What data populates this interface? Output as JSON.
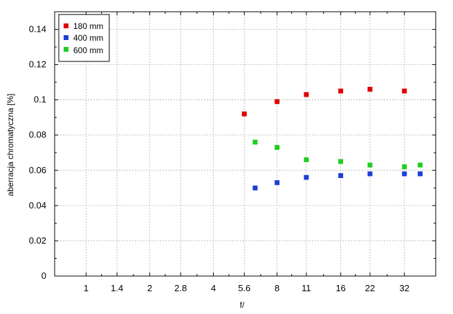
{
  "chart_data": {
    "type": "scatter",
    "title": "",
    "xlabel": "f/",
    "ylabel": "aberracja chromatyczna [%]",
    "x_scale": "log2",
    "xlim": [
      0.71,
      45
    ],
    "ylim": [
      0,
      0.15
    ],
    "x_ticks": [
      {
        "value": 1,
        "label": "1"
      },
      {
        "value": 1.4,
        "label": "1.4"
      },
      {
        "value": 2,
        "label": "2"
      },
      {
        "value": 2.8,
        "label": "2.8"
      },
      {
        "value": 4,
        "label": "4"
      },
      {
        "value": 5.6,
        "label": "5.6"
      },
      {
        "value": 8,
        "label": "8"
      },
      {
        "value": 11,
        "label": "11"
      },
      {
        "value": 16,
        "label": "16"
      },
      {
        "value": 22,
        "label": "22"
      },
      {
        "value": 32,
        "label": "32"
      }
    ],
    "y_ticks": [
      {
        "value": 0,
        "label": "0"
      },
      {
        "value": 0.02,
        "label": "0.02"
      },
      {
        "value": 0.04,
        "label": "0.04"
      },
      {
        "value": 0.06,
        "label": "0.06"
      },
      {
        "value": 0.08,
        "label": "0.08"
      },
      {
        "value": 0.1,
        "label": "0.1"
      },
      {
        "value": 0.12,
        "label": "0.12"
      },
      {
        "value": 0.14,
        "label": "0.14"
      }
    ],
    "grid": true,
    "legend_position": "top-left",
    "series": [
      {
        "name": "180 mm",
        "color": "#e00000",
        "points": [
          [
            5.6,
            0.092
          ],
          [
            8,
            0.099
          ],
          [
            11,
            0.103
          ],
          [
            16,
            0.105
          ],
          [
            22,
            0.106
          ],
          [
            32,
            0.105
          ]
        ]
      },
      {
        "name": "400 mm",
        "color": "#1c3fd6",
        "points": [
          [
            6.3,
            0.05
          ],
          [
            8,
            0.053
          ],
          [
            11,
            0.056
          ],
          [
            16,
            0.057
          ],
          [
            22,
            0.058
          ],
          [
            32,
            0.058
          ],
          [
            38,
            0.058
          ]
        ]
      },
      {
        "name": "600 mm",
        "color": "#22cc22",
        "points": [
          [
            6.3,
            0.076
          ],
          [
            8,
            0.073
          ],
          [
            11,
            0.066
          ],
          [
            16,
            0.065
          ],
          [
            22,
            0.063
          ],
          [
            32,
            0.062
          ],
          [
            38,
            0.063
          ]
        ]
      }
    ]
  }
}
